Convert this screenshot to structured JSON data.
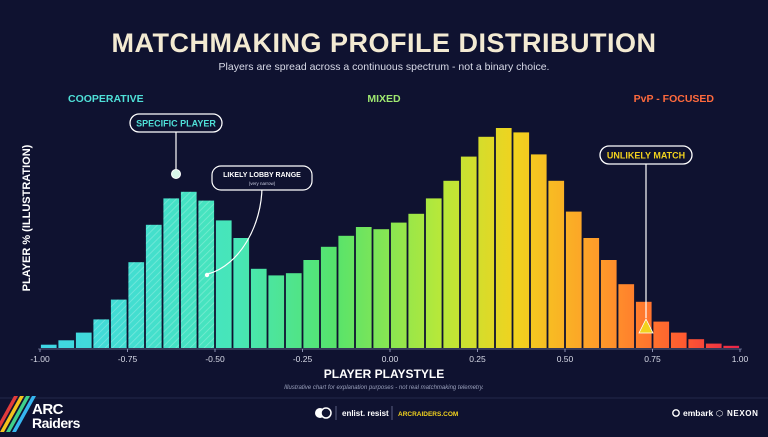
{
  "title": "MATCHMAKING PROFILE DISTRIBUTION",
  "subtitle": "Players are spread across a continuous spectrum - not a binary choice.",
  "zones": [
    {
      "label": "COOPERATIVE",
      "color": "#4fe0d8"
    },
    {
      "label": "MIXED",
      "color": "#9fe870"
    },
    {
      "label": "PvP - FOCUSED",
      "color": "#ff6a3d"
    }
  ],
  "annotations": {
    "specific_player": "SPECIFIC PLAYER",
    "lobby_range": "LIKELY LOBBY RANGE",
    "lobby_range_note": "(very narrow)",
    "unlikely_match": "UNLIKELY MATCH"
  },
  "footnote": "Illustrative chart for explanation purposes - not real matchmaking telemetry.",
  "footer": {
    "logo_top": "ARC",
    "logo_bottom": "Raiders",
    "partner": "enlist. resist",
    "site": "ARCRAIDERS.COM",
    "brand1": "embark",
    "brand2": "NEXON"
  },
  "chart_data": {
    "type": "bar",
    "title": "MATCHMAKING PROFILE DISTRIBUTION",
    "xlabel": "PLAYER PLAYSTYLE",
    "ylabel": "PLAYER % (ILLUSTRATION)",
    "xlim": [
      -1.0,
      1.0
    ],
    "xticks": [
      -1.0,
      -0.75,
      -0.5,
      -0.25,
      0.0,
      0.25,
      0.5,
      0.75,
      1.0
    ],
    "xtick_labels": [
      "-1.00",
      "-0.75",
      "-0.50",
      "-0.25",
      "0.00",
      "0.25",
      "0.50",
      "0.75",
      "1.00"
    ],
    "bin_width": 0.05,
    "x": [
      -0.975,
      -0.925,
      -0.875,
      -0.825,
      -0.775,
      -0.725,
      -0.675,
      -0.625,
      -0.575,
      -0.525,
      -0.475,
      -0.425,
      -0.375,
      -0.325,
      -0.275,
      -0.225,
      -0.175,
      -0.125,
      -0.075,
      -0.025,
      0.025,
      0.075,
      0.125,
      0.175,
      0.225,
      0.275,
      0.325,
      0.375,
      0.425,
      0.475,
      0.525,
      0.575,
      0.625,
      0.675,
      0.725,
      0.775,
      0.825,
      0.875,
      0.925,
      0.975
    ],
    "values": [
      1.5,
      3.5,
      7,
      13,
      22,
      39,
      56,
      68,
      71,
      67,
      58,
      50,
      36,
      33,
      34,
      40,
      46,
      51,
      55,
      54,
      57,
      61,
      68,
      76,
      87,
      96,
      100,
      98,
      88,
      76,
      62,
      50,
      40,
      29,
      21,
      12,
      7,
      4,
      2,
      1
    ],
    "ylim": [
      0,
      100
    ],
    "grid": false,
    "highlight_range": [
      -0.85,
      -0.5
    ],
    "specific_player_x": -0.625,
    "unlikely_match_x": 0.72
  }
}
